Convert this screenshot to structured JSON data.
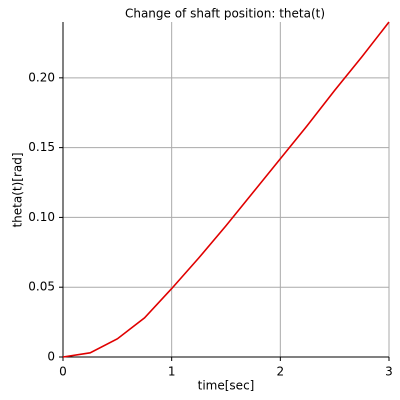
{
  "chart_data": {
    "type": "line",
    "title": "Change of shaft position: theta(t)",
    "x_label": "time[sec]",
    "y_label": "theta(t)[rad]",
    "x": [
      0,
      0.25,
      0.5,
      0.75,
      1,
      1.25,
      1.5,
      1.75,
      2,
      2.25,
      2.5,
      2.75,
      3
    ],
    "series": [
      {
        "name": "theta(t)",
        "color": "#e00000",
        "values": [
          0,
          0.003,
          0.013,
          0.028,
          0.049,
          0.071,
          0.094,
          0.118,
          0.142,
          0.166,
          0.191,
          0.215,
          0.24
        ]
      }
    ],
    "xlim": [
      0,
      3
    ],
    "ylim": [
      0,
      0.24
    ],
    "xticks": [
      0,
      1,
      2,
      3
    ],
    "yticks": [
      {
        "value": 0,
        "label": "0"
      },
      {
        "value": 0.05,
        "label": "0.05"
      },
      {
        "value": 0.1,
        "label": "0.10"
      },
      {
        "value": 0.15,
        "label": "0.15"
      },
      {
        "value": 0.2,
        "label": "0.20"
      }
    ],
    "grid": true,
    "legend": false
  }
}
